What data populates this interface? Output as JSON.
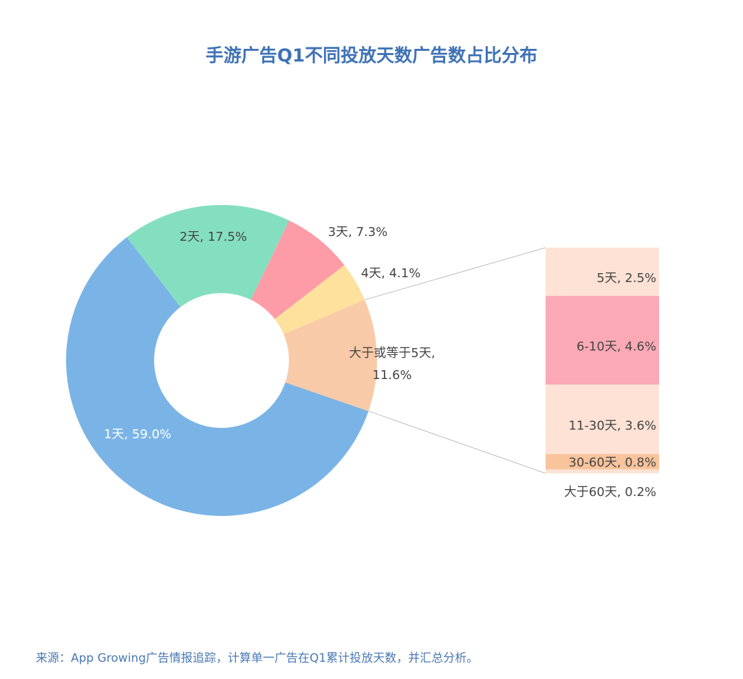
{
  "chart_data": [
    {
      "type": "pie",
      "title": "手游广告Q1不同投放天数广告数占比分布",
      "values": [
        59.0,
        17.5,
        7.3,
        4.1,
        11.6
      ],
      "value_labels": [
        "1天, 59.0%",
        "2天, 17.5%",
        "3天, 7.3%",
        "4天, 4.1%",
        "大于或等于5天, 11.6%"
      ],
      "colors": [
        "#7ab4e6",
        "#84dfc0",
        "#fd9ca7",
        "#fde19c",
        "#f9caa8"
      ]
    },
    {
      "type": "bar",
      "stacked": true,
      "values": [
        2.5,
        4.6,
        3.6,
        0.8,
        0.2
      ],
      "value_labels": [
        "5天, 2.5%",
        "6-10天, 4.6%",
        "11-30天, 3.6%",
        "30-60天, 0.8%",
        "大于60天, 0.2%"
      ],
      "colors": [
        "#fde2d5",
        "#fbaab5",
        "#fde2d5",
        "#f9c49c",
        "#fde2d5"
      ]
    }
  ],
  "source": "来源：App Growing广告情报追踪，计算单一广告在Q1累计投放天数，并汇总分析。"
}
